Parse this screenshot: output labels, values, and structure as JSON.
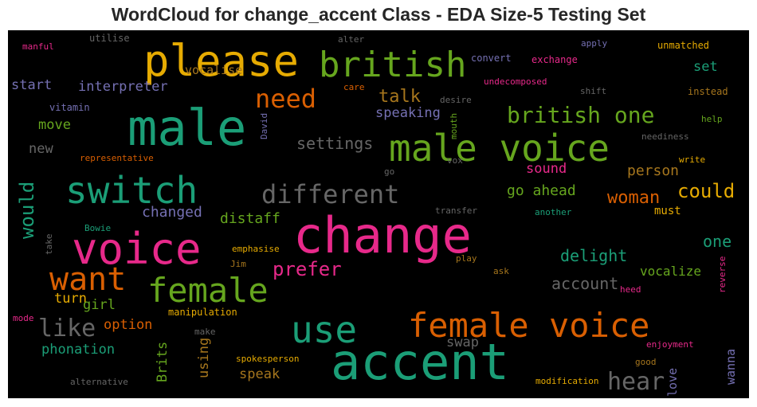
{
  "chart_data": {
    "type": "wordcloud",
    "title": "WordCloud for change_accent Class - EDA Size-5 Testing Set",
    "words": [
      {
        "text": "please",
        "color": "#e6ab02"
      },
      {
        "text": "british",
        "color": "#66a61e"
      },
      {
        "text": "male",
        "color": "#1b9e77"
      },
      {
        "text": "male voice",
        "color": "#66a61e"
      },
      {
        "text": "change",
        "color": "#e7298a"
      },
      {
        "text": "accent",
        "color": "#1b9e77"
      },
      {
        "text": "voice",
        "color": "#e7298a"
      },
      {
        "text": "switch",
        "color": "#1b9e77"
      },
      {
        "text": "female voice",
        "color": "#d95f02"
      },
      {
        "text": "use",
        "color": "#1b9e77"
      },
      {
        "text": "female",
        "color": "#66a61e"
      },
      {
        "text": "want",
        "color": "#d95f02"
      },
      {
        "text": "different",
        "color": "#666666"
      },
      {
        "text": "need",
        "color": "#d95f02"
      },
      {
        "text": "british one",
        "color": "#66a61e"
      },
      {
        "text": "like",
        "color": "#666666"
      },
      {
        "text": "hear",
        "color": "#666666"
      },
      {
        "text": "could",
        "color": "#e6ab02"
      },
      {
        "text": "woman",
        "color": "#d95f02"
      },
      {
        "text": "would",
        "color": "#1b9e77"
      },
      {
        "text": "prefer",
        "color": "#e7298a"
      },
      {
        "text": "talk",
        "color": "#a6761d"
      },
      {
        "text": "settings",
        "color": "#666666"
      },
      {
        "text": "delight",
        "color": "#1b9e77"
      },
      {
        "text": "account",
        "color": "#666666"
      },
      {
        "text": "one",
        "color": "#1b9e77"
      },
      {
        "text": "person",
        "color": "#a6761d"
      },
      {
        "text": "changed",
        "color": "#7570b3"
      },
      {
        "text": "distaff",
        "color": "#66a61e"
      },
      {
        "text": "speaking",
        "color": "#7570b3"
      },
      {
        "text": "go ahead",
        "color": "#66a61e"
      },
      {
        "text": "sound",
        "color": "#e7298a"
      },
      {
        "text": "interpreter",
        "color": "#7570b3"
      },
      {
        "text": "vocalise",
        "color": "#a6761d"
      },
      {
        "text": "start",
        "color": "#7570b3"
      },
      {
        "text": "move",
        "color": "#66a61e"
      },
      {
        "text": "new",
        "color": "#666666"
      },
      {
        "text": "turn",
        "color": "#e6ab02"
      },
      {
        "text": "girl",
        "color": "#66a61e"
      },
      {
        "text": "option",
        "color": "#d95f02"
      },
      {
        "text": "phonation",
        "color": "#1b9e77"
      },
      {
        "text": "using",
        "color": "#a6761d"
      },
      {
        "text": "Brits",
        "color": "#66a61e"
      },
      {
        "text": "speak",
        "color": "#a6761d"
      },
      {
        "text": "swap",
        "color": "#666666"
      },
      {
        "text": "love",
        "color": "#7570b3"
      },
      {
        "text": "wanna",
        "color": "#7570b3"
      },
      {
        "text": "vocalize",
        "color": "#66a61e"
      },
      {
        "text": "must",
        "color": "#e6ab02"
      },
      {
        "text": "set",
        "color": "#1b9e77"
      },
      {
        "text": "utilise",
        "color": "#666666"
      },
      {
        "text": "manful",
        "color": "#e7298a"
      },
      {
        "text": "vitamin",
        "color": "#7570b3"
      },
      {
        "text": "representative",
        "color": "#d95f02"
      },
      {
        "text": "alter",
        "color": "#666666"
      },
      {
        "text": "care",
        "color": "#d95f02"
      },
      {
        "text": "convert",
        "color": "#7570b3"
      },
      {
        "text": "exchange",
        "color": "#e7298a"
      },
      {
        "text": "undecomposed",
        "color": "#e7298a"
      },
      {
        "text": "apply",
        "color": "#7570b3"
      },
      {
        "text": "unmatched",
        "color": "#e6ab02"
      },
      {
        "text": "shift",
        "color": "#666666"
      },
      {
        "text": "instead",
        "color": "#a6761d"
      },
      {
        "text": "desire",
        "color": "#666666"
      },
      {
        "text": "help",
        "color": "#66a61e"
      },
      {
        "text": "neediness",
        "color": "#666666"
      },
      {
        "text": "write",
        "color": "#e6ab02"
      },
      {
        "text": "vox",
        "color": "#666666"
      },
      {
        "text": "go",
        "color": "#666666"
      },
      {
        "text": "transfer",
        "color": "#666666"
      },
      {
        "text": "another",
        "color": "#1b9e77"
      },
      {
        "text": "Bowie",
        "color": "#1b9e77"
      },
      {
        "text": "emphasise",
        "color": "#e6ab02"
      },
      {
        "text": "Jim",
        "color": "#a6761d"
      },
      {
        "text": "play",
        "color": "#a6761d"
      },
      {
        "text": "ask",
        "color": "#a6761d"
      },
      {
        "text": "heed",
        "color": "#e7298a"
      },
      {
        "text": "manipulation",
        "color": "#e6ab02"
      },
      {
        "text": "make",
        "color": "#666666"
      },
      {
        "text": "mode",
        "color": "#e7298a"
      },
      {
        "text": "spokesperson",
        "color": "#e6ab02"
      },
      {
        "text": "alternative",
        "color": "#666666"
      },
      {
        "text": "modification",
        "color": "#e6ab02"
      },
      {
        "text": "good",
        "color": "#a6761d"
      },
      {
        "text": "enjoyment",
        "color": "#e7298a"
      },
      {
        "text": "David",
        "color": "#7570b3"
      },
      {
        "text": "mouth",
        "color": "#66a61e"
      },
      {
        "text": "take",
        "color": "#666666"
      },
      {
        "text": "reverse",
        "color": "#e7298a"
      }
    ]
  }
}
